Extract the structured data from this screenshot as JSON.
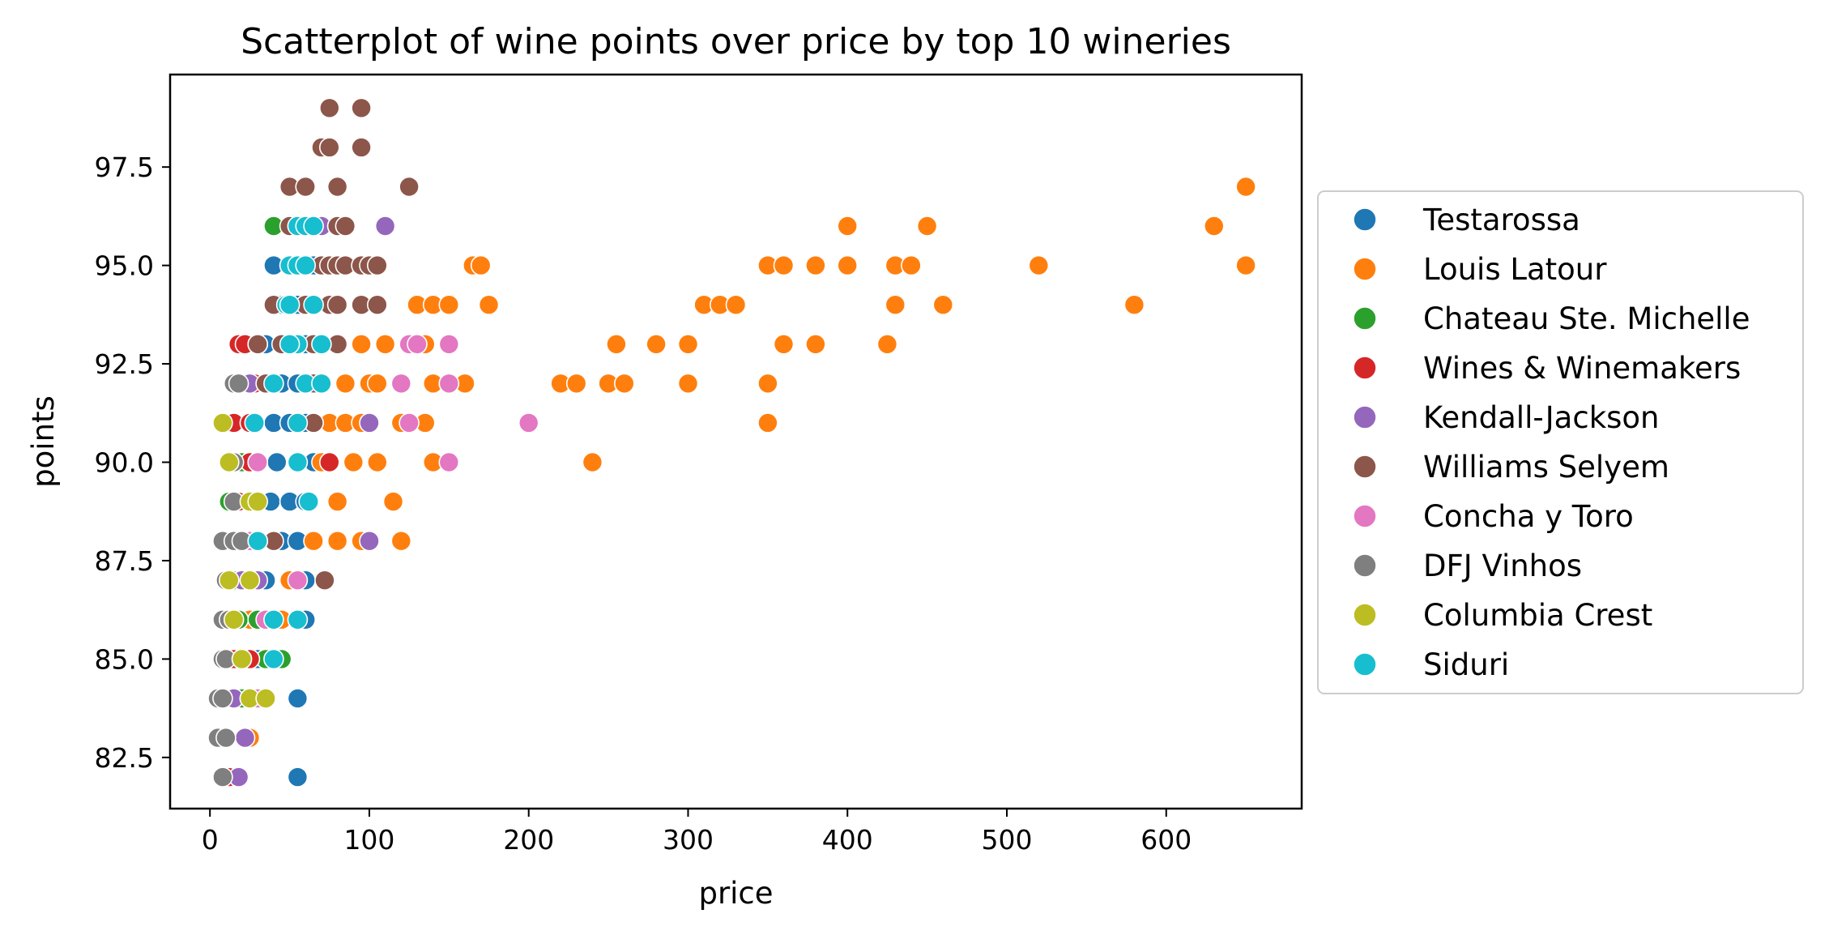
{
  "chart_data": {
    "type": "scatter",
    "title": "Scatterplot of wine points over price by top 10 wineries",
    "xlabel": "price",
    "ylabel": "points",
    "xlim": [
      -25,
      685
    ],
    "ylim": [
      81.2,
      99.85
    ],
    "xticks": [
      0,
      100,
      200,
      300,
      400,
      500,
      600
    ],
    "yticks": [
      82.5,
      85.0,
      87.5,
      90.0,
      92.5,
      95.0,
      97.5
    ],
    "xtick_labels": [
      "0",
      "100",
      "200",
      "300",
      "400",
      "500",
      "600"
    ],
    "ytick_labels": [
      "82.5",
      "85.0",
      "87.5",
      "90.0",
      "92.5",
      "95.0",
      "97.5"
    ],
    "grid": false,
    "legend_position": "outside right",
    "series": [
      {
        "name": "Testarossa",
        "color": "#1f77b4",
        "points": [
          [
            40,
            95
          ],
          [
            55,
            94
          ],
          [
            35,
            93
          ],
          [
            60,
            93
          ],
          [
            45,
            92
          ],
          [
            55,
            92
          ],
          [
            65,
            92
          ],
          [
            40,
            91
          ],
          [
            50,
            91
          ],
          [
            60,
            91
          ],
          [
            42,
            90
          ],
          [
            55,
            90
          ],
          [
            65,
            90
          ],
          [
            38,
            89
          ],
          [
            50,
            89
          ],
          [
            60,
            89
          ],
          [
            45,
            88
          ],
          [
            55,
            88
          ],
          [
            65,
            88
          ],
          [
            35,
            87
          ],
          [
            50,
            87
          ],
          [
            60,
            87
          ],
          [
            40,
            86
          ],
          [
            55,
            86
          ],
          [
            60,
            86
          ],
          [
            30,
            85
          ],
          [
            45,
            85
          ],
          [
            55,
            84
          ],
          [
            55,
            82
          ],
          [
            45,
            94
          ],
          [
            65,
            95
          ],
          [
            50,
            93
          ]
        ]
      },
      {
        "name": "Louis Latour",
        "color": "#ff7f0e",
        "points": [
          [
            650,
            97
          ],
          [
            400,
            96
          ],
          [
            450,
            96
          ],
          [
            630,
            96
          ],
          [
            165,
            95
          ],
          [
            170,
            95
          ],
          [
            350,
            95
          ],
          [
            360,
            95
          ],
          [
            380,
            95
          ],
          [
            400,
            95
          ],
          [
            430,
            95
          ],
          [
            440,
            95
          ],
          [
            520,
            95
          ],
          [
            650,
            95
          ],
          [
            130,
            94
          ],
          [
            140,
            94
          ],
          [
            150,
            94
          ],
          [
            175,
            94
          ],
          [
            310,
            94
          ],
          [
            320,
            94
          ],
          [
            330,
            94
          ],
          [
            430,
            94
          ],
          [
            460,
            94
          ],
          [
            580,
            94
          ],
          [
            80,
            93
          ],
          [
            95,
            93
          ],
          [
            110,
            93
          ],
          [
            130,
            93
          ],
          [
            135,
            93
          ],
          [
            255,
            93
          ],
          [
            280,
            93
          ],
          [
            300,
            93
          ],
          [
            360,
            93
          ],
          [
            380,
            93
          ],
          [
            425,
            93
          ],
          [
            85,
            92
          ],
          [
            100,
            92
          ],
          [
            105,
            92
          ],
          [
            140,
            92
          ],
          [
            150,
            92
          ],
          [
            160,
            92
          ],
          [
            220,
            92
          ],
          [
            230,
            92
          ],
          [
            250,
            92
          ],
          [
            260,
            92
          ],
          [
            300,
            92
          ],
          [
            350,
            92
          ],
          [
            75,
            91
          ],
          [
            85,
            91
          ],
          [
            95,
            91
          ],
          [
            120,
            91
          ],
          [
            135,
            91
          ],
          [
            350,
            91
          ],
          [
            70,
            90
          ],
          [
            90,
            90
          ],
          [
            105,
            90
          ],
          [
            140,
            90
          ],
          [
            240,
            90
          ],
          [
            80,
            89
          ],
          [
            115,
            89
          ],
          [
            65,
            88
          ],
          [
            80,
            88
          ],
          [
            95,
            88
          ],
          [
            120,
            88
          ],
          [
            50,
            87
          ],
          [
            25,
            86
          ],
          [
            45,
            86
          ],
          [
            25,
            83
          ]
        ]
      },
      {
        "name": "Chateau Ste. Michelle",
        "color": "#2ca02c",
        "points": [
          [
            40,
            96
          ],
          [
            15,
            91
          ],
          [
            20,
            90
          ],
          [
            12,
            89
          ],
          [
            25,
            89
          ],
          [
            18,
            88
          ],
          [
            15,
            87
          ],
          [
            18,
            86
          ],
          [
            30,
            86
          ],
          [
            45,
            85
          ],
          [
            35,
            85
          ],
          [
            20,
            84
          ]
        ]
      },
      {
        "name": "Wines & Winemakers",
        "color": "#d62728",
        "points": [
          [
            18,
            93
          ],
          [
            22,
            93
          ],
          [
            30,
            93
          ],
          [
            15,
            92
          ],
          [
            28,
            92
          ],
          [
            15,
            91
          ],
          [
            25,
            91
          ],
          [
            25,
            90
          ],
          [
            75,
            90
          ],
          [
            18,
            89
          ],
          [
            15,
            88
          ],
          [
            22,
            87
          ],
          [
            14,
            86
          ],
          [
            15,
            85
          ],
          [
            25,
            85
          ],
          [
            12,
            82
          ],
          [
            15,
            84
          ]
        ]
      },
      {
        "name": "Kendall-Jackson",
        "color": "#9467bd",
        "points": [
          [
            110,
            96
          ],
          [
            70,
            96
          ],
          [
            80,
            96
          ],
          [
            20,
            92
          ],
          [
            25,
            92
          ],
          [
            100,
            91
          ],
          [
            30,
            90
          ],
          [
            100,
            88
          ],
          [
            20,
            87
          ],
          [
            30,
            87
          ],
          [
            15,
            84
          ],
          [
            25,
            84
          ],
          [
            18,
            82
          ],
          [
            22,
            83
          ]
        ]
      },
      {
        "name": "Williams Selyem",
        "color": "#8c564b",
        "points": [
          [
            75,
            99
          ],
          [
            95,
            99
          ],
          [
            70,
            98
          ],
          [
            75,
            98
          ],
          [
            95,
            98
          ],
          [
            50,
            97
          ],
          [
            60,
            97
          ],
          [
            80,
            97
          ],
          [
            125,
            97
          ],
          [
            50,
            96
          ],
          [
            55,
            96
          ],
          [
            80,
            96
          ],
          [
            85,
            96
          ],
          [
            50,
            95
          ],
          [
            70,
            95
          ],
          [
            75,
            95
          ],
          [
            80,
            95
          ],
          [
            85,
            95
          ],
          [
            95,
            95
          ],
          [
            100,
            95
          ],
          [
            105,
            95
          ],
          [
            40,
            94
          ],
          [
            60,
            94
          ],
          [
            75,
            94
          ],
          [
            80,
            94
          ],
          [
            95,
            94
          ],
          [
            105,
            94
          ],
          [
            30,
            93
          ],
          [
            45,
            93
          ],
          [
            55,
            93
          ],
          [
            65,
            93
          ],
          [
            80,
            93
          ],
          [
            35,
            92
          ],
          [
            65,
            92
          ],
          [
            65,
            91
          ],
          [
            40,
            88
          ],
          [
            72,
            87
          ]
        ]
      },
      {
        "name": "Concha y Toro",
        "color": "#e377c2",
        "points": [
          [
            150,
            93
          ],
          [
            125,
            93
          ],
          [
            130,
            93
          ],
          [
            120,
            92
          ],
          [
            150,
            92
          ],
          [
            200,
            91
          ],
          [
            125,
            91
          ],
          [
            150,
            90
          ],
          [
            30,
            90
          ],
          [
            25,
            88
          ],
          [
            55,
            87
          ],
          [
            35,
            86
          ],
          [
            20,
            85
          ],
          [
            30,
            84
          ]
        ]
      },
      {
        "name": "DFJ Vinhos",
        "color": "#7f7f7f",
        "points": [
          [
            15,
            92
          ],
          [
            18,
            92
          ],
          [
            12,
            90
          ],
          [
            15,
            90
          ],
          [
            15,
            89
          ],
          [
            8,
            88
          ],
          [
            15,
            88
          ],
          [
            20,
            88
          ],
          [
            10,
            87
          ],
          [
            8,
            86
          ],
          [
            12,
            86
          ],
          [
            8,
            85
          ],
          [
            10,
            85
          ],
          [
            5,
            84
          ],
          [
            8,
            84
          ],
          [
            5,
            83
          ],
          [
            10,
            83
          ],
          [
            8,
            82
          ]
        ]
      },
      {
        "name": "Columbia Crest",
        "color": "#bcbd22",
        "points": [
          [
            8,
            91
          ],
          [
            12,
            90
          ],
          [
            25,
            89
          ],
          [
            30,
            89
          ],
          [
            30,
            88
          ],
          [
            12,
            87
          ],
          [
            25,
            87
          ],
          [
            15,
            86
          ],
          [
            20,
            85
          ],
          [
            25,
            84
          ],
          [
            35,
            84
          ]
        ]
      },
      {
        "name": "Siduri",
        "color": "#17becf",
        "points": [
          [
            55,
            96
          ],
          [
            60,
            96
          ],
          [
            65,
            96
          ],
          [
            50,
            95
          ],
          [
            55,
            95
          ],
          [
            60,
            95
          ],
          [
            48,
            94
          ],
          [
            50,
            94
          ],
          [
            65,
            94
          ],
          [
            70,
            93
          ],
          [
            55,
            93
          ],
          [
            50,
            93
          ],
          [
            40,
            92
          ],
          [
            60,
            92
          ],
          [
            70,
            92
          ],
          [
            28,
            91
          ],
          [
            55,
            91
          ],
          [
            55,
            90
          ],
          [
            62,
            89
          ],
          [
            30,
            88
          ],
          [
            40,
            86
          ],
          [
            55,
            86
          ],
          [
            40,
            85
          ]
        ]
      }
    ]
  }
}
